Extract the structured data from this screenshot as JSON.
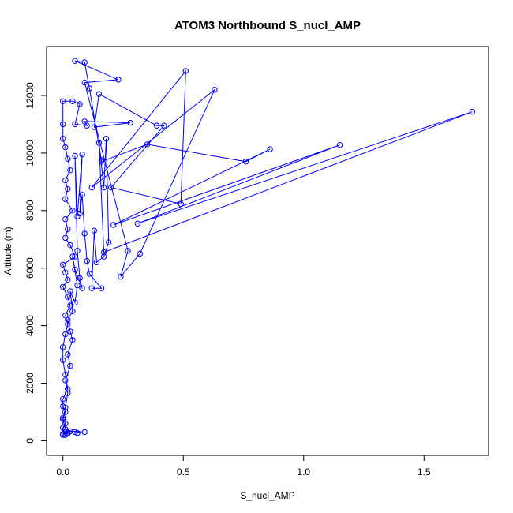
{
  "chart_data": {
    "type": "line",
    "title": "ATOM3 Northbound S_nucl_AMP",
    "xlabel": "S_nucl_AMP",
    "ylabel": "Altitude (m)",
    "xlim": [
      -0.068,
      1.768
    ],
    "ylim": [
      -510,
      13700
    ],
    "x_ticks": [
      0.0,
      0.5,
      1.0,
      1.5
    ],
    "x_tick_labels": [
      "0.0",
      "0.5",
      "1.0",
      "1.5"
    ],
    "y_ticks": [
      0,
      2000,
      4000,
      6000,
      8000,
      10000,
      12000
    ],
    "y_tick_labels": [
      "0",
      "2000",
      "4000",
      "6000",
      "8000",
      "10000",
      "12000"
    ],
    "grid": false,
    "legend": "none",
    "series": [
      {
        "color": "#0000ff",
        "marker": "open-circle",
        "points": [
          [
            0.0,
            200
          ],
          [
            0.02,
            250
          ],
          [
            0.01,
            320
          ],
          [
            0.0,
            450
          ],
          [
            0.01,
            600
          ],
          [
            0.0,
            800
          ],
          [
            0.01,
            1000
          ],
          [
            0.0,
            1200
          ],
          [
            0.0,
            1450
          ],
          [
            0.02,
            1800
          ],
          [
            0.01,
            2300
          ],
          [
            0.0,
            2800
          ],
          [
            0.0,
            3250
          ],
          [
            0.01,
            3700
          ],
          [
            0.02,
            4050
          ],
          [
            0.01,
            4350
          ],
          [
            0.03,
            4700
          ],
          [
            0.02,
            5000
          ],
          [
            0.0,
            5350
          ],
          [
            0.02,
            5600
          ],
          [
            0.01,
            5850
          ],
          [
            0.0,
            6120
          ],
          [
            0.05,
            6400
          ],
          [
            0.03,
            6800
          ],
          [
            0.01,
            7050
          ],
          [
            0.02,
            7350
          ],
          [
            0.01,
            7700
          ],
          [
            0.04,
            8000
          ],
          [
            0.01,
            8400
          ],
          [
            0.02,
            8750
          ],
          [
            0.01,
            9050
          ],
          [
            0.03,
            9400
          ],
          [
            0.02,
            9800
          ],
          [
            0.01,
            10200
          ],
          [
            0.0,
            10500
          ],
          [
            0.0,
            11000
          ],
          [
            0.0,
            11800
          ],
          [
            0.04,
            11800
          ],
          [
            0.07,
            11700
          ],
          [
            0.05,
            11000
          ],
          [
            0.1,
            10950
          ],
          [
            0.09,
            11100
          ],
          [
            0.28,
            11050
          ],
          [
            0.13,
            10900
          ],
          [
            0.15,
            12050
          ],
          [
            0.39,
            10950
          ],
          [
            0.42,
            10950
          ],
          [
            0.2,
            8800
          ],
          [
            0.49,
            8230
          ],
          [
            0.51,
            12850
          ],
          [
            0.12,
            8800
          ],
          [
            0.63,
            12200
          ],
          [
            0.32,
            6500
          ],
          [
            0.24,
            5700
          ],
          [
            0.27,
            6600
          ],
          [
            0.09,
            12450
          ],
          [
            0.23,
            12550
          ],
          [
            0.05,
            13200
          ],
          [
            0.09,
            13150
          ],
          [
            0.11,
            12250
          ],
          [
            0.16,
            9750
          ],
          [
            0.16,
            9700
          ],
          [
            0.35,
            10300
          ],
          [
            0.76,
            9700
          ],
          [
            0.86,
            10130
          ],
          [
            0.21,
            7500
          ],
          [
            1.15,
            10280
          ],
          [
            0.31,
            7550
          ],
          [
            1.7,
            11430
          ],
          [
            0.17,
            6550
          ],
          [
            0.15,
            10350
          ],
          [
            0.17,
            8800
          ],
          [
            0.18,
            10500
          ],
          [
            0.19,
            6900
          ],
          [
            0.17,
            6400
          ],
          [
            0.14,
            6200
          ],
          [
            0.13,
            7300
          ],
          [
            0.12,
            5300
          ],
          [
            0.16,
            5300
          ],
          [
            0.11,
            5800
          ],
          [
            0.1,
            6250
          ],
          [
            0.09,
            7200
          ],
          [
            0.08,
            8550
          ],
          [
            0.07,
            7900
          ],
          [
            0.08,
            9950
          ],
          [
            0.06,
            7800
          ],
          [
            0.05,
            9900
          ],
          [
            0.06,
            6600
          ],
          [
            0.07,
            5650
          ],
          [
            0.08,
            5300
          ],
          [
            0.05,
            5950
          ],
          [
            0.04,
            6400
          ],
          [
            0.06,
            5400
          ],
          [
            0.05,
            4800
          ],
          [
            0.03,
            5200
          ],
          [
            0.04,
            4500
          ],
          [
            0.02,
            4200
          ],
          [
            0.03,
            3800
          ],
          [
            0.04,
            3500
          ],
          [
            0.02,
            3000
          ],
          [
            0.03,
            2600
          ],
          [
            0.01,
            2100
          ],
          [
            0.02,
            1650
          ],
          [
            0.01,
            1150
          ],
          [
            0.0,
            750
          ],
          [
            0.01,
            400
          ],
          [
            0.05,
            300
          ],
          [
            0.06,
            270
          ],
          [
            0.09,
            300
          ],
          [
            0.03,
            330
          ],
          [
            0.02,
            280
          ],
          [
            0.01,
            200
          ],
          [
            0.0,
            230
          ]
        ]
      }
    ]
  }
}
